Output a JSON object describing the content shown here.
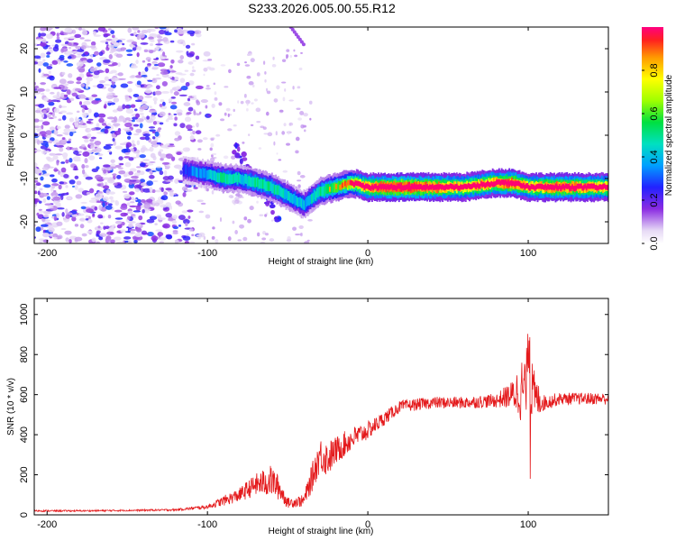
{
  "title": "S233.2026.005.00.55.R12",
  "chart_data": [
    {
      "type": "heatmap",
      "xlabel": "Height of straight line (km)",
      "ylabel": "Frequency (Hz)",
      "xlim": [
        -208,
        150
      ],
      "ylim": [
        -25,
        25
      ],
      "xticks": [
        -200,
        -100,
        0,
        100
      ],
      "yticks": [
        20,
        10,
        0,
        -10,
        -20
      ],
      "xtick_labels": [
        "-200",
        "-100",
        "0",
        "100"
      ],
      "ytick_labels": [
        "20",
        "10",
        "0",
        "-10",
        "-20"
      ],
      "colorbar": {
        "label": "Normalized spectral amplitude",
        "range": [
          0,
          1
        ],
        "ticks": [
          0.0,
          0.2,
          0.4,
          0.6,
          0.8
        ],
        "tick_labels": [
          "0.0",
          "0.2",
          "0.4",
          "0.6",
          "0.8"
        ]
      },
      "trace": {
        "x": [
          -115,
          -100,
          -90,
          -80,
          -70,
          -60,
          -50,
          -40,
          -30,
          -20,
          -10,
          0,
          20,
          40,
          60,
          80,
          90,
          100,
          120,
          150
        ],
        "y": [
          -8,
          -9,
          -10,
          -10,
          -11,
          -12,
          -14,
          -16,
          -13,
          -12,
          -11,
          -12,
          -12,
          -12,
          -12,
          -11,
          -11,
          -12,
          -12,
          -12
        ],
        "amplitude": [
          0.3,
          0.4,
          0.5,
          0.45,
          0.5,
          0.5,
          0.45,
          0.4,
          0.5,
          0.6,
          0.7,
          0.85,
          0.95,
          0.9,
          0.8,
          0.85,
          0.9,
          0.8,
          0.9,
          0.8
        ]
      },
      "diagonal_branch": {
        "x": [
          -85,
          -75,
          -65,
          -55
        ],
        "y": [
          -2,
          -7,
          -13,
          -20
        ]
      },
      "noise_region": {
        "x_range": [
          -208,
          -95
        ],
        "density": "high"
      },
      "stray_trace": {
        "x": [
          -48,
          -40
        ],
        "y": [
          25,
          21
        ]
      }
    },
    {
      "type": "line",
      "xlabel": "Height of straight line (km)",
      "ylabel": "SNR (10 * v/v)",
      "xlim": [
        -208,
        150
      ],
      "ylim": [
        0,
        1080
      ],
      "xticks": [
        -200,
        -100,
        0,
        100
      ],
      "yticks": [
        0,
        200,
        400,
        600,
        800,
        1000
      ],
      "xtick_labels": [
        "-200",
        "-100",
        "0",
        "100"
      ],
      "ytick_labels": [
        "0",
        "200",
        "400",
        "600",
        "800",
        "1000"
      ],
      "color": "#e41a1c",
      "series": [
        {
          "name": "SNR",
          "x": [
            -208,
            -180,
            -150,
            -120,
            -100,
            -90,
            -80,
            -70,
            -60,
            -55,
            -50,
            -40,
            -35,
            -30,
            -25,
            -20,
            -10,
            0,
            10,
            20,
            40,
            60,
            80,
            90,
            95,
            100,
            105,
            110,
            120,
            150
          ],
          "y": [
            20,
            20,
            22,
            25,
            40,
            70,
            100,
            150,
            170,
            130,
            60,
            70,
            180,
            300,
            280,
            320,
            380,
            420,
            480,
            540,
            560,
            560,
            570,
            600,
            620,
            640,
            580,
            560,
            580,
            580
          ],
          "noise": [
            4,
            4,
            4,
            5,
            10,
            25,
            35,
            55,
            80,
            60,
            25,
            30,
            70,
            90,
            90,
            70,
            60,
            45,
            35,
            30,
            30,
            30,
            35,
            70,
            150,
            220,
            100,
            40,
            30,
            30
          ]
        }
      ]
    }
  ]
}
